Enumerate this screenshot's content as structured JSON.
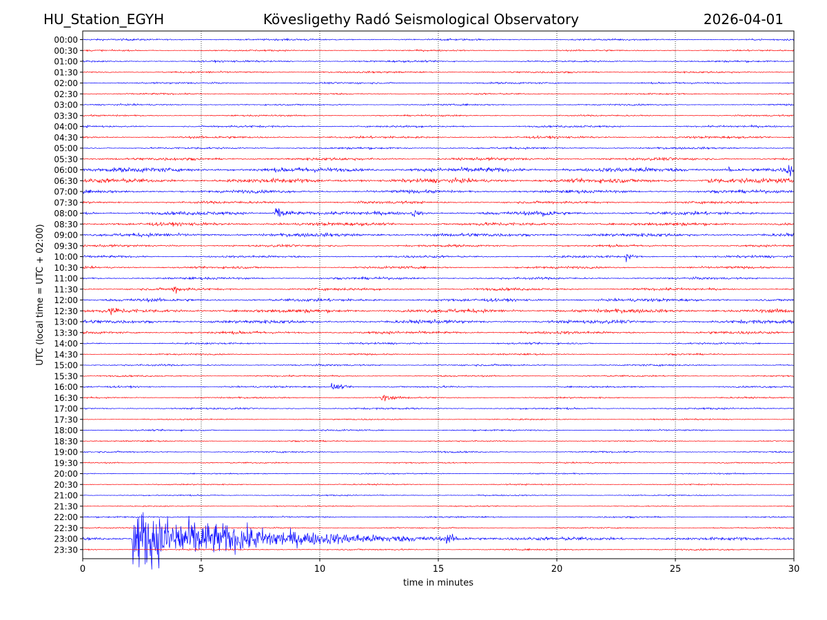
{
  "header": {
    "station": "HU_Station_EGYH",
    "observatory": "Kövesligethy Radó Seismological Observatory",
    "date": "2026-04-01"
  },
  "chart_data": {
    "type": "line",
    "title": "Kövesligethy Radó Seismological Observatory",
    "xlabel": "time in minutes",
    "ylabel": "UTC (local time = UTC + 02:00)",
    "xlim": [
      0,
      30
    ],
    "xticks": [
      "0",
      "5",
      "10",
      "15",
      "20",
      "25",
      "30"
    ],
    "grid": "vertical dotted lines at 5-minute intervals",
    "colors": [
      "#0000ff",
      "#ff0000"
    ],
    "row_labels": [
      "00:00",
      "00:30",
      "01:00",
      "01:30",
      "02:00",
      "02:30",
      "03:00",
      "03:30",
      "04:00",
      "04:30",
      "05:00",
      "05:30",
      "06:00",
      "06:30",
      "07:00",
      "07:30",
      "08:00",
      "08:30",
      "09:00",
      "09:30",
      "10:00",
      "10:30",
      "11:00",
      "11:30",
      "12:00",
      "12:30",
      "13:00",
      "13:30",
      "14:00",
      "14:30",
      "15:00",
      "15:30",
      "16:00",
      "16:30",
      "17:00",
      "17:30",
      "18:00",
      "18:30",
      "19:00",
      "19:30",
      "20:00",
      "20:30",
      "21:00",
      "21:30",
      "22:00",
      "22:30",
      "23:00",
      "23:30"
    ],
    "noise": [
      0.35,
      0.3,
      0.35,
      0.35,
      0.35,
      0.3,
      0.3,
      0.3,
      0.4,
      0.45,
      0.4,
      0.55,
      0.9,
      0.85,
      0.6,
      0.5,
      0.7,
      0.65,
      0.7,
      0.45,
      0.45,
      0.45,
      0.45,
      0.5,
      0.6,
      0.75,
      0.7,
      0.55,
      0.35,
      0.3,
      0.35,
      0.3,
      0.35,
      0.3,
      0.35,
      0.25,
      0.3,
      0.25,
      0.3,
      0.25,
      0.25,
      0.25,
      0.25,
      0.2,
      0.3,
      0.25,
      0.5,
      0.3
    ],
    "events": [
      {
        "row": 16,
        "t": 8.1,
        "amp": 7,
        "dur": 0.7
      },
      {
        "row": 16,
        "t": 13.9,
        "amp": 4,
        "dur": 0.3
      },
      {
        "row": 16,
        "t": 19.4,
        "amp": 6,
        "dur": 0.3
      },
      {
        "row": 20,
        "t": 22.9,
        "amp": 6,
        "dur": 0.2
      },
      {
        "row": 23,
        "t": 3.8,
        "amp": 6,
        "dur": 0.25
      },
      {
        "row": 25,
        "t": 1.2,
        "amp": 4,
        "dur": 0.25
      },
      {
        "row": 32,
        "t": 10.5,
        "amp": 4,
        "dur": 0.6
      },
      {
        "row": 33,
        "t": 12.6,
        "amp": 4,
        "dur": 0.5
      },
      {
        "row": 12,
        "t": 29.7,
        "amp": 6,
        "dur": 0.5
      },
      {
        "row": 12,
        "t": 27.2,
        "amp": 4,
        "dur": 0.3
      },
      {
        "row": 13,
        "t": 26.2,
        "amp": 3,
        "dur": 1.2
      },
      {
        "row": 46,
        "t": 2.1,
        "amp": 30,
        "dur": 9.5
      },
      {
        "row": 46,
        "t": 15.3,
        "amp": 6,
        "dur": 0.4
      }
    ]
  }
}
